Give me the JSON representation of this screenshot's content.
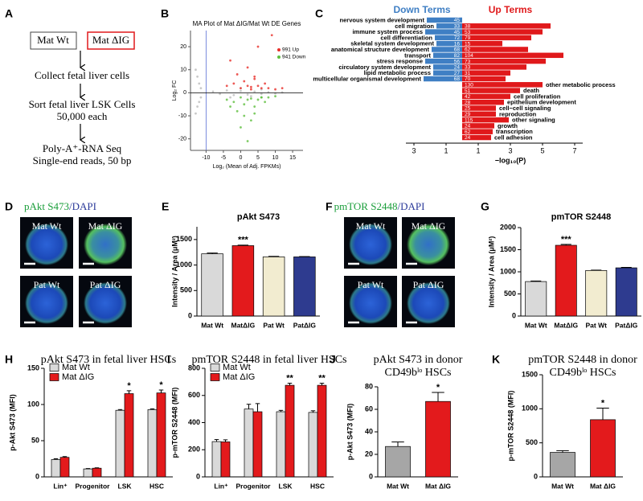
{
  "diagram": {
    "panel_label": "A",
    "groups": [
      "Mat Wt",
      "Mat ΔIG"
    ],
    "steps": [
      [
        "Collect fetal liver cells"
      ],
      [
        "Sort fetal liver LSK Cells",
        "50,000 each"
      ],
      [
        "Poly-A⁺-RNA Seq",
        "Single-end reads, 50 bp"
      ]
    ]
  },
  "micrographs": [
    {
      "panel_label": "D",
      "stain": "pAkt S473",
      "counterstain": "/DAPI",
      "images": [
        "Mat Wt",
        "Mat ΔIG",
        "Pat Wt",
        "Pat ΔIG"
      ]
    },
    {
      "panel_label": "F",
      "stain": "pmTOR S2448",
      "counterstain": "/DAPI",
      "images": [
        "Mat Wt",
        "Mat ΔIG",
        "Pat Wt",
        "Pat ΔIG"
      ]
    }
  ],
  "chart_data": [
    {
      "panel_label": "B",
      "type": "scatter",
      "title": "MA Plot of Mat ΔIG/Mat Wt DE Genes",
      "xlabel": "Log₂ (Mean of Adj. FPKMs)",
      "ylabel": "Log₂ FC",
      "xlim": [
        -14.5,
        18
      ],
      "ylim": [
        -25,
        27
      ],
      "xticks": [
        -10,
        -5,
        0,
        5,
        10,
        15
      ],
      "yticks": [
        -20,
        -10,
        0,
        10,
        20
      ],
      "reference_lines": [
        {
          "axis": "x",
          "value": -10,
          "color": "#5a6fd6"
        },
        {
          "axis": "y",
          "value": 0,
          "color": "#000000"
        }
      ],
      "series": [
        {
          "color": "#bbbbbb",
          "x": [
            -13,
            -12.5,
            -12,
            -11.5,
            -13,
            -12.5,
            -12,
            -11.5,
            -8,
            -6,
            -4,
            -2,
            0,
            2,
            4,
            6,
            8,
            10,
            12,
            -3,
            0,
            3,
            6
          ],
          "y": [
            10,
            7,
            4,
            2,
            -9,
            -6,
            -4,
            -2,
            0.5,
            -0.5,
            1,
            -1,
            0.8,
            -0.8,
            0.5,
            -0.5,
            0.3,
            -0.3,
            0.2,
            -2,
            2,
            -1.5,
            1.5
          ]
        },
        {
          "name": "991 Up",
          "color": "#e8302a",
          "x": [
            -4,
            -2,
            0,
            1,
            2,
            3,
            4,
            5,
            6,
            7,
            8,
            10,
            -1,
            2,
            4,
            12,
            -3,
            5,
            9,
            3
          ],
          "y": [
            3,
            4,
            2,
            5,
            3,
            2.5,
            6,
            3,
            2,
            4,
            2,
            1.5,
            8,
            11,
            7,
            2,
            14,
            20,
            25,
            1.5
          ]
        },
        {
          "name": "941 Down",
          "color": "#5fbf3f",
          "x": [
            -4,
            -2,
            0,
            1,
            2,
            3,
            4,
            5,
            6,
            7,
            8,
            10,
            -1,
            1,
            3,
            -3,
            0,
            2,
            6,
            4
          ],
          "y": [
            -3,
            -4,
            -2,
            -5,
            -3,
            -2.5,
            -6,
            -3,
            -2,
            -4,
            -2,
            -1.5,
            -8,
            -10,
            -12,
            -6,
            -15,
            -21,
            -2,
            -9
          ]
        }
      ]
    },
    {
      "panel_label": "C",
      "type": "diverging_bar",
      "xlabel": "−log₁₀(P)",
      "categories": [
        "nervous system development",
        "cell migration",
        "immune system process",
        "cell differentiation",
        "skeletal system development",
        "anatomical structure development",
        "transport",
        "stress response",
        "circulatory system development",
        "lipid metabolic process",
        "multicellular organismal development",
        "other metabolic process",
        "death",
        "cell proliferation",
        "epithelium development",
        "cell−cell signaling",
        "reproduction",
        "other signaling",
        "growth",
        "transcription",
        "cell adhesion"
      ],
      "xlim": [
        -3.5,
        7.5
      ],
      "xticks": [
        {
          "value": -3,
          "label": "3"
        },
        {
          "value": -1,
          "label": "1"
        },
        1,
        3,
        5,
        7
      ],
      "series": [
        {
          "name": "Down Terms",
          "color": "#3f7fc4",
          "direction": "left",
          "values": [
            2.2,
            1.6,
            2.3,
            1.7,
            1.6,
            1.9,
            1.8,
            2.3,
            1.8,
            1.8,
            2.4,
            null,
            null,
            null,
            null,
            null,
            null,
            null,
            null,
            null,
            null
          ],
          "gene_counts": [
            45,
            33,
            45,
            72,
            16,
            68,
            82,
            56,
            24,
            27,
            68,
            null,
            null,
            null,
            null,
            null,
            null,
            null,
            null,
            null,
            null
          ]
        },
        {
          "name": "Up Terms",
          "color": "#e0191b",
          "direction": "right",
          "values": [
            null,
            5.5,
            5.0,
            4.3,
            2.5,
            4.1,
            6.3,
            5.2,
            4.0,
            3.0,
            2.7,
            5.0,
            3.6,
            3.0,
            2.6,
            2.1,
            2.1,
            2.9,
            2.0,
            1.9,
            1.8
          ],
          "gene_counts": [
            null,
            38,
            53,
            79,
            15,
            62,
            104,
            73,
            33,
            31,
            70,
            130,
            51,
            42,
            28,
            25,
            29,
            115,
            24,
            62,
            24
          ]
        }
      ]
    },
    {
      "panel_label": "E",
      "type": "bar",
      "title": "pAkt S473",
      "ylabel": "Intensity / Area (μM²)",
      "categories": [
        "Mat Wt",
        "MatΔIG",
        "Pat Wt",
        "PatΔIG"
      ],
      "ylim": [
        0,
        1750
      ],
      "yticks": [
        0,
        500,
        1000,
        1500
      ],
      "series": [
        {
          "colors": [
            "#d9d9d9",
            "#e31a1c",
            "#f2ecd0",
            "#2e3b8f"
          ],
          "values": [
            1220,
            1380,
            1160,
            1160
          ],
          "errors": [
            15,
            10,
            10,
            6
          ],
          "annotations": [
            null,
            "***",
            null,
            null
          ]
        }
      ]
    },
    {
      "panel_label": "G",
      "type": "bar",
      "title": "pmTOR S2448",
      "ylabel": "Intensity / Area (μM²)",
      "categories": [
        "Mat Wt",
        "MatΔIG",
        "Pat Wt",
        "PatΔIG"
      ],
      "ylim": [
        0,
        2000
      ],
      "yticks": [
        0,
        500,
        1000,
        1500,
        2000
      ],
      "series": [
        {
          "colors": [
            "#d9d9d9",
            "#e31a1c",
            "#f2ecd0",
            "#2e3b8f"
          ],
          "values": [
            780,
            1600,
            1030,
            1090
          ],
          "errors": [
            12,
            20,
            8,
            10
          ],
          "annotations": [
            null,
            "***",
            null,
            null
          ]
        }
      ]
    },
    {
      "panel_label": "H",
      "type": "bar",
      "title": [
        "pAkt S473 in fetal liver HSCs"
      ],
      "ylabel": "p-Akt S473 (MFI)",
      "categories": [
        "Lin⁺",
        "Progenitor",
        "LSK",
        "HSC"
      ],
      "ylim": [
        0,
        150
      ],
      "yticks": [
        0,
        50,
        100,
        150
      ],
      "legend": "upper left",
      "series": [
        {
          "name": "Mat Wt",
          "color": "#d9d9d9",
          "values": [
            24,
            11,
            92,
            93
          ],
          "errors": [
            1,
            0.5,
            1,
            1
          ],
          "annotations": [
            null,
            null,
            null,
            null
          ]
        },
        {
          "name": "Mat ΔIG",
          "color": "#e31a1c",
          "values": [
            27,
            12,
            115,
            116
          ],
          "errors": [
            1,
            0.5,
            4,
            4
          ],
          "annotations": [
            null,
            null,
            "*",
            "*"
          ]
        }
      ]
    },
    {
      "panel_label": "I",
      "type": "bar",
      "title": [
        "pmTOR S2448 in fetal liver HSCs"
      ],
      "ylabel": "p-mTOR S2448 (MFI)",
      "categories": [
        "Lin⁺",
        "Progenitor",
        "LSK",
        "HSC"
      ],
      "ylim": [
        0,
        800
      ],
      "yticks": [
        0,
        200,
        400,
        600,
        800
      ],
      "legend": "upper left",
      "series": [
        {
          "name": "Mat Wt",
          "color": "#d9d9d9",
          "values": [
            260,
            500,
            480,
            475
          ],
          "errors": [
            15,
            35,
            10,
            12
          ],
          "annotations": [
            null,
            null,
            null,
            null
          ]
        },
        {
          "name": "Mat ΔIG",
          "color": "#e31a1c",
          "values": [
            258,
            480,
            675,
            675
          ],
          "errors": [
            15,
            60,
            15,
            15
          ],
          "annotations": [
            null,
            null,
            "**",
            "**"
          ]
        }
      ]
    },
    {
      "panel_label": "J",
      "type": "bar",
      "title": [
        "pAkt S473 in donor",
        "CD49bˡᵒ HSCs"
      ],
      "ylabel": "p-Akt S473 (MFI)",
      "categories": [
        "Mat Wt",
        "Mat ΔIG"
      ],
      "ylim": [
        0,
        80
      ],
      "yticks": [
        0,
        20,
        40,
        60,
        80
      ],
      "series": [
        {
          "colors": [
            "#a6a6a6",
            "#e31a1c"
          ],
          "values": [
            27,
            67
          ],
          "errors": [
            4,
            8
          ],
          "annotations": [
            null,
            "*"
          ]
        }
      ]
    },
    {
      "panel_label": "K",
      "type": "bar",
      "title": [
        "pmTOR S2448 in donor",
        "CD49bˡᵒ HSCs"
      ],
      "ylabel": "p-mTOR S2448 (MFI)",
      "categories": [
        "Mat Wt",
        "Mat ΔIG"
      ],
      "ylim": [
        0,
        1500
      ],
      "yticks": [
        0,
        500,
        1000,
        1500
      ],
      "series": [
        {
          "colors": [
            "#a6a6a6",
            "#e31a1c"
          ],
          "values": [
            360,
            840
          ],
          "errors": [
            25,
            170
          ],
          "annotations": [
            null,
            "*"
          ]
        }
      ]
    }
  ]
}
